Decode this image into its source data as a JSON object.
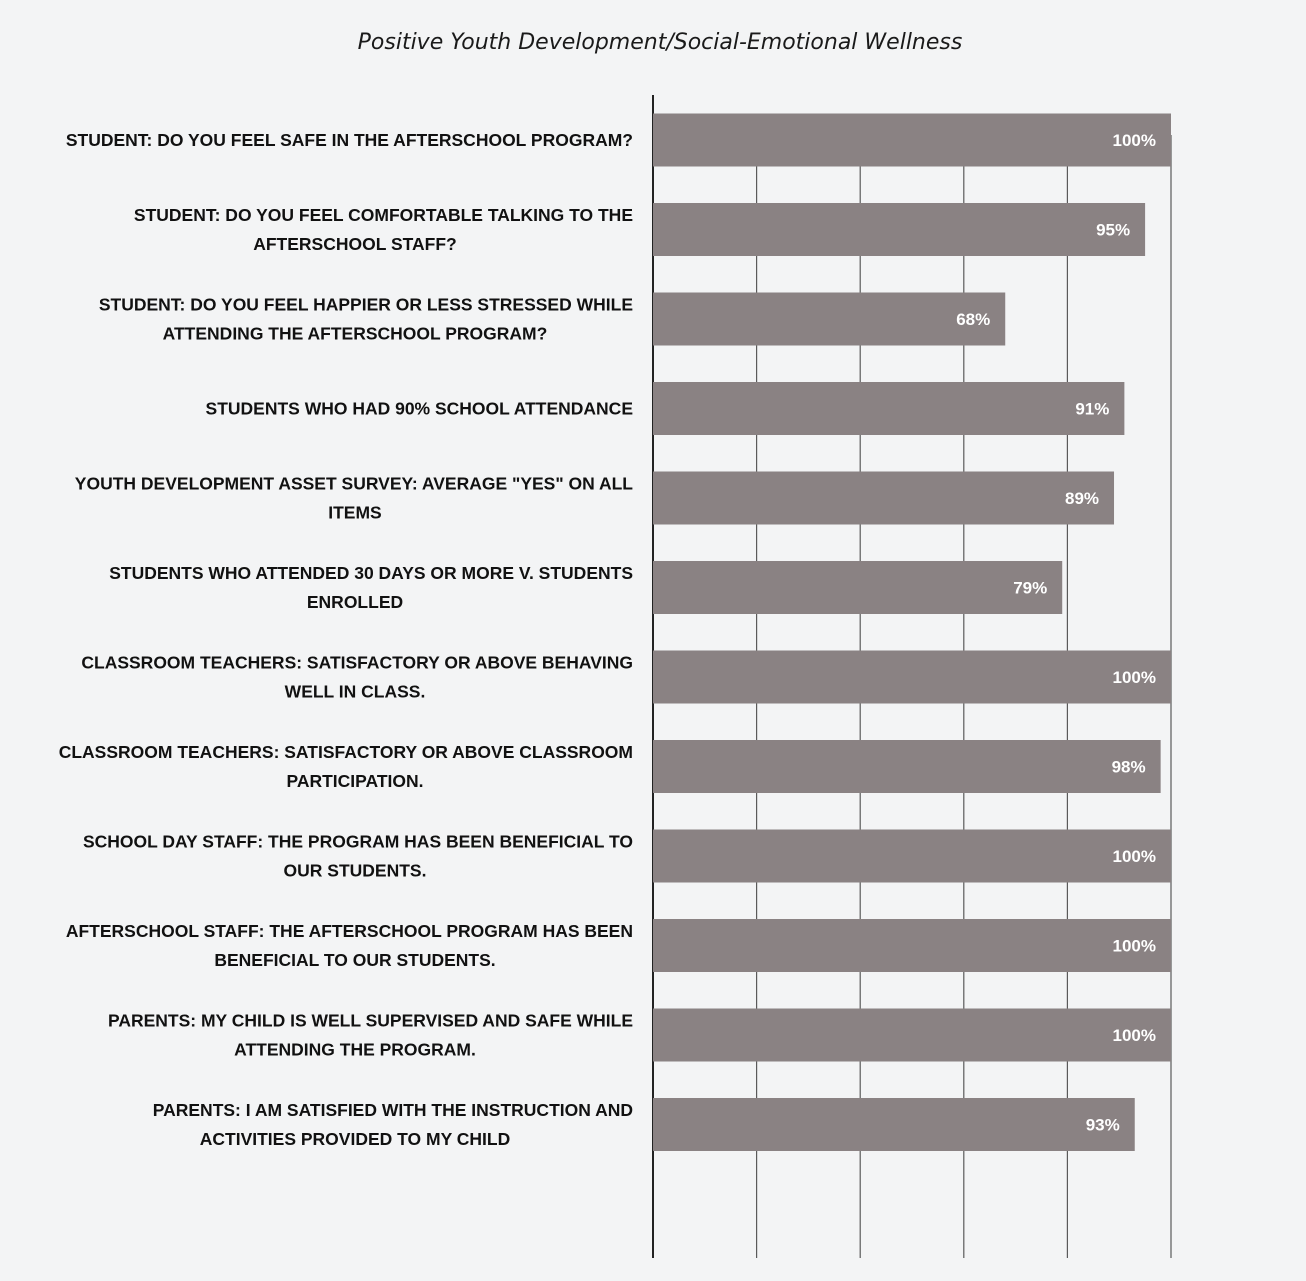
{
  "chart_data": {
    "type": "bar",
    "orientation": "horizontal",
    "title": "Positive Youth Development/Social-Emotional Wellness",
    "categories": [
      [
        "STUDENT: DO YOU FEEL SAFE IN THE AFTERSCHOOL PROGRAM?"
      ],
      [
        "STUDENT: DO YOU FEEL COMFORTABLE TALKING TO THE",
        "AFTERSCHOOL STAFF?"
      ],
      [
        "STUDENT: DO YOU FEEL HAPPIER OR LESS STRESSED WHILE",
        "ATTENDING THE AFTERSCHOOL PROGRAM?"
      ],
      [
        "STUDENTS WHO HAD 90% SCHOOL ATTENDANCE"
      ],
      [
        "YOUTH DEVELOPMENT ASSET SURVEY: AVERAGE \"YES\" ON ALL",
        "ITEMS"
      ],
      [
        "STUDENTS WHO ATTENDED 30 DAYS OR MORE V. STUDENTS",
        "ENROLLED"
      ],
      [
        "CLASSROOM TEACHERS: SATISFACTORY OR ABOVE BEHAVING",
        "WELL IN CLASS."
      ],
      [
        "CLASSROOM TEACHERS: SATISFACTORY OR ABOVE CLASSROOM",
        "PARTICIPATION."
      ],
      [
        "SCHOOL DAY STAFF: THE PROGRAM HAS BEEN BENEFICIAL TO",
        "OUR STUDENTS."
      ],
      [
        "AFTERSCHOOL STAFF: THE AFTERSCHOOL PROGRAM HAS BEEN",
        "BENEFICIAL TO OUR STUDENTS."
      ],
      [
        "PARENTS: MY CHILD IS WELL SUPERVISED AND SAFE WHILE",
        "ATTENDING THE PROGRAM."
      ],
      [
        "PARENTS: I AM SATISFIED WITH THE INSTRUCTION AND",
        "ACTIVITIES PROVIDED TO MY CHILD"
      ]
    ],
    "values": [
      100,
      95,
      68,
      91,
      89,
      79,
      100,
      98,
      100,
      100,
      100,
      93
    ],
    "value_labels": [
      "100%",
      "95%",
      "68%",
      "91%",
      "89%",
      "79%",
      "100%",
      "98%",
      "100%",
      "100%",
      "100%",
      "93%"
    ],
    "xlim": [
      0,
      100
    ],
    "grid": true,
    "bar_color": "#8a8283"
  }
}
